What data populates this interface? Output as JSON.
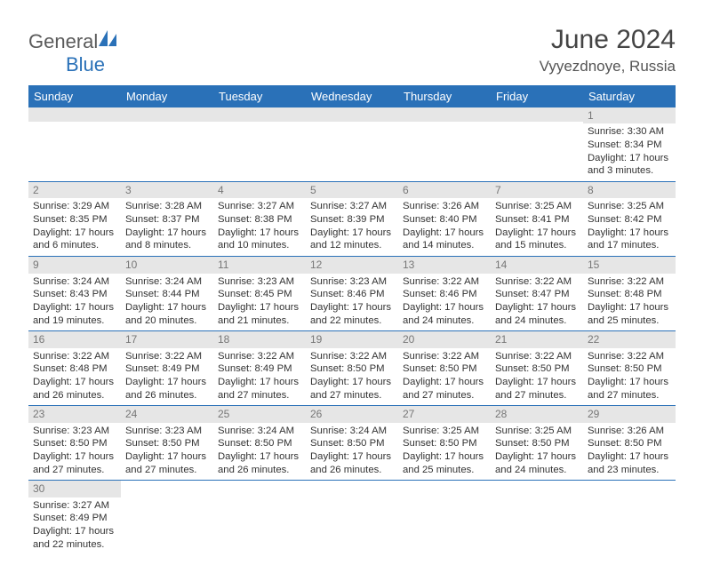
{
  "logo": {
    "general": "General",
    "blue": "Blue"
  },
  "header": {
    "title": "June 2024",
    "location": "Vyyezdnoye, Russia"
  },
  "colors": {
    "header_bg": "#2a71b8",
    "header_fg": "#ffffff",
    "daynum_bg": "#e6e6e6",
    "daynum_fg": "#777777",
    "border": "#2a71b8",
    "text": "#333333"
  },
  "weekdays": [
    "Sunday",
    "Monday",
    "Tuesday",
    "Wednesday",
    "Thursday",
    "Friday",
    "Saturday"
  ],
  "rows": [
    [
      {
        "n": "",
        "lines": []
      },
      {
        "n": "",
        "lines": []
      },
      {
        "n": "",
        "lines": []
      },
      {
        "n": "",
        "lines": []
      },
      {
        "n": "",
        "lines": []
      },
      {
        "n": "",
        "lines": []
      },
      {
        "n": "1",
        "lines": [
          "Sunrise: 3:30 AM",
          "Sunset: 8:34 PM",
          "Daylight: 17 hours and 3 minutes."
        ]
      }
    ],
    [
      {
        "n": "2",
        "lines": [
          "Sunrise: 3:29 AM",
          "Sunset: 8:35 PM",
          "Daylight: 17 hours and 6 minutes."
        ]
      },
      {
        "n": "3",
        "lines": [
          "Sunrise: 3:28 AM",
          "Sunset: 8:37 PM",
          "Daylight: 17 hours and 8 minutes."
        ]
      },
      {
        "n": "4",
        "lines": [
          "Sunrise: 3:27 AM",
          "Sunset: 8:38 PM",
          "Daylight: 17 hours and 10 minutes."
        ]
      },
      {
        "n": "5",
        "lines": [
          "Sunrise: 3:27 AM",
          "Sunset: 8:39 PM",
          "Daylight: 17 hours and 12 minutes."
        ]
      },
      {
        "n": "6",
        "lines": [
          "Sunrise: 3:26 AM",
          "Sunset: 8:40 PM",
          "Daylight: 17 hours and 14 minutes."
        ]
      },
      {
        "n": "7",
        "lines": [
          "Sunrise: 3:25 AM",
          "Sunset: 8:41 PM",
          "Daylight: 17 hours and 15 minutes."
        ]
      },
      {
        "n": "8",
        "lines": [
          "Sunrise: 3:25 AM",
          "Sunset: 8:42 PM",
          "Daylight: 17 hours and 17 minutes."
        ]
      }
    ],
    [
      {
        "n": "9",
        "lines": [
          "Sunrise: 3:24 AM",
          "Sunset: 8:43 PM",
          "Daylight: 17 hours and 19 minutes."
        ]
      },
      {
        "n": "10",
        "lines": [
          "Sunrise: 3:24 AM",
          "Sunset: 8:44 PM",
          "Daylight: 17 hours and 20 minutes."
        ]
      },
      {
        "n": "11",
        "lines": [
          "Sunrise: 3:23 AM",
          "Sunset: 8:45 PM",
          "Daylight: 17 hours and 21 minutes."
        ]
      },
      {
        "n": "12",
        "lines": [
          "Sunrise: 3:23 AM",
          "Sunset: 8:46 PM",
          "Daylight: 17 hours and 22 minutes."
        ]
      },
      {
        "n": "13",
        "lines": [
          "Sunrise: 3:22 AM",
          "Sunset: 8:46 PM",
          "Daylight: 17 hours and 24 minutes."
        ]
      },
      {
        "n": "14",
        "lines": [
          "Sunrise: 3:22 AM",
          "Sunset: 8:47 PM",
          "Daylight: 17 hours and 24 minutes."
        ]
      },
      {
        "n": "15",
        "lines": [
          "Sunrise: 3:22 AM",
          "Sunset: 8:48 PM",
          "Daylight: 17 hours and 25 minutes."
        ]
      }
    ],
    [
      {
        "n": "16",
        "lines": [
          "Sunrise: 3:22 AM",
          "Sunset: 8:48 PM",
          "Daylight: 17 hours and 26 minutes."
        ]
      },
      {
        "n": "17",
        "lines": [
          "Sunrise: 3:22 AM",
          "Sunset: 8:49 PM",
          "Daylight: 17 hours and 26 minutes."
        ]
      },
      {
        "n": "18",
        "lines": [
          "Sunrise: 3:22 AM",
          "Sunset: 8:49 PM",
          "Daylight: 17 hours and 27 minutes."
        ]
      },
      {
        "n": "19",
        "lines": [
          "Sunrise: 3:22 AM",
          "Sunset: 8:50 PM",
          "Daylight: 17 hours and 27 minutes."
        ]
      },
      {
        "n": "20",
        "lines": [
          "Sunrise: 3:22 AM",
          "Sunset: 8:50 PM",
          "Daylight: 17 hours and 27 minutes."
        ]
      },
      {
        "n": "21",
        "lines": [
          "Sunrise: 3:22 AM",
          "Sunset: 8:50 PM",
          "Daylight: 17 hours and 27 minutes."
        ]
      },
      {
        "n": "22",
        "lines": [
          "Sunrise: 3:22 AM",
          "Sunset: 8:50 PM",
          "Daylight: 17 hours and 27 minutes."
        ]
      }
    ],
    [
      {
        "n": "23",
        "lines": [
          "Sunrise: 3:23 AM",
          "Sunset: 8:50 PM",
          "Daylight: 17 hours and 27 minutes."
        ]
      },
      {
        "n": "24",
        "lines": [
          "Sunrise: 3:23 AM",
          "Sunset: 8:50 PM",
          "Daylight: 17 hours and 27 minutes."
        ]
      },
      {
        "n": "25",
        "lines": [
          "Sunrise: 3:24 AM",
          "Sunset: 8:50 PM",
          "Daylight: 17 hours and 26 minutes."
        ]
      },
      {
        "n": "26",
        "lines": [
          "Sunrise: 3:24 AM",
          "Sunset: 8:50 PM",
          "Daylight: 17 hours and 26 minutes."
        ]
      },
      {
        "n": "27",
        "lines": [
          "Sunrise: 3:25 AM",
          "Sunset: 8:50 PM",
          "Daylight: 17 hours and 25 minutes."
        ]
      },
      {
        "n": "28",
        "lines": [
          "Sunrise: 3:25 AM",
          "Sunset: 8:50 PM",
          "Daylight: 17 hours and 24 minutes."
        ]
      },
      {
        "n": "29",
        "lines": [
          "Sunrise: 3:26 AM",
          "Sunset: 8:50 PM",
          "Daylight: 17 hours and 23 minutes."
        ]
      }
    ],
    [
      {
        "n": "30",
        "lines": [
          "Sunrise: 3:27 AM",
          "Sunset: 8:49 PM",
          "Daylight: 17 hours and 22 minutes."
        ]
      },
      {
        "n": "",
        "lines": []
      },
      {
        "n": "",
        "lines": []
      },
      {
        "n": "",
        "lines": []
      },
      {
        "n": "",
        "lines": []
      },
      {
        "n": "",
        "lines": []
      },
      {
        "n": "",
        "lines": []
      }
    ]
  ]
}
